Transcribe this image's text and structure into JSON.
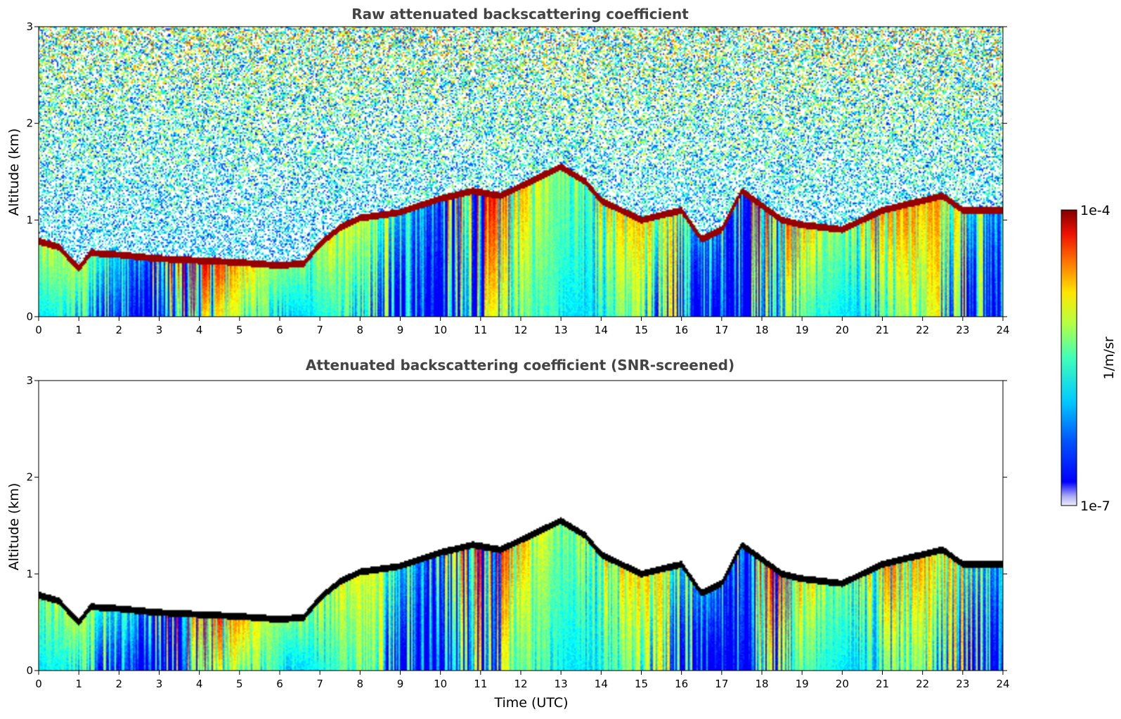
{
  "chart_data": [
    {
      "type": "heatmap",
      "title": "Raw attenuated backscattering coefficient",
      "xlabel": "",
      "ylabel": "Altitude (km)",
      "xlim": [
        0,
        24
      ],
      "ylim": [
        0,
        3
      ],
      "x_ticks": [
        0,
        1,
        2,
        3,
        4,
        5,
        6,
        7,
        8,
        9,
        10,
        11,
        12,
        13,
        14,
        15,
        16,
        17,
        18,
        19,
        20,
        21,
        22,
        23,
        24
      ],
      "y_ticks": [
        0,
        1,
        2,
        3
      ],
      "colormap": "jet",
      "color_scale": "log",
      "clim": [
        1e-07,
        0.0001
      ],
      "colorbar_label": "1/m/sr",
      "colorbar_ticks": [
        "1e-4",
        "1e-7"
      ],
      "screened": false,
      "layer_top_km": [
        [
          0,
          0.78
        ],
        [
          0.5,
          0.72
        ],
        [
          1,
          0.5
        ],
        [
          1.3,
          0.66
        ],
        [
          2,
          0.64
        ],
        [
          3,
          0.6
        ],
        [
          4,
          0.58
        ],
        [
          5,
          0.56
        ],
        [
          6,
          0.53
        ],
        [
          6.6,
          0.55
        ],
        [
          7,
          0.75
        ],
        [
          7.5,
          0.92
        ],
        [
          8,
          1.02
        ],
        [
          9,
          1.08
        ],
        [
          10,
          1.22
        ],
        [
          10.8,
          1.3
        ],
        [
          11.5,
          1.25
        ],
        [
          12,
          1.35
        ],
        [
          13,
          1.55
        ],
        [
          13.6,
          1.4
        ],
        [
          14,
          1.2
        ],
        [
          14.5,
          1.1
        ],
        [
          15,
          1.0
        ],
        [
          15.5,
          1.05
        ],
        [
          16,
          1.1
        ],
        [
          16.5,
          0.8
        ],
        [
          17,
          0.9
        ],
        [
          17.5,
          1.3
        ],
        [
          18,
          1.15
        ],
        [
          18.5,
          1.0
        ],
        [
          19,
          0.95
        ],
        [
          20,
          0.9
        ],
        [
          21,
          1.1
        ],
        [
          22,
          1.2
        ],
        [
          22.5,
          1.25
        ],
        [
          23,
          1.1
        ],
        [
          24,
          1.1
        ]
      ]
    },
    {
      "type": "heatmap",
      "title": "Attenuated backscattering coefficient (SNR-screened)",
      "xlabel": "Time (UTC)",
      "ylabel": "Altitude (km)",
      "xlim": [
        0,
        24
      ],
      "ylim": [
        0,
        3
      ],
      "x_ticks": [
        0,
        1,
        2,
        3,
        4,
        5,
        6,
        7,
        8,
        9,
        10,
        11,
        12,
        13,
        14,
        15,
        16,
        17,
        18,
        19,
        20,
        21,
        22,
        23,
        24
      ],
      "y_ticks": [
        0,
        1,
        2,
        3
      ],
      "colormap": "jet",
      "color_scale": "log",
      "clim": [
        1e-07,
        0.0001
      ],
      "colorbar_label": "1/m/sr",
      "colorbar_ticks": [
        "1e-4",
        "1e-7"
      ],
      "screened": true,
      "layer_top_km": [
        [
          0,
          0.78
        ],
        [
          0.5,
          0.72
        ],
        [
          1,
          0.5
        ],
        [
          1.3,
          0.66
        ],
        [
          2,
          0.64
        ],
        [
          3,
          0.6
        ],
        [
          4,
          0.58
        ],
        [
          5,
          0.56
        ],
        [
          6,
          0.53
        ],
        [
          6.6,
          0.55
        ],
        [
          7,
          0.75
        ],
        [
          7.5,
          0.92
        ],
        [
          8,
          1.02
        ],
        [
          9,
          1.08
        ],
        [
          10,
          1.22
        ],
        [
          10.8,
          1.3
        ],
        [
          11.5,
          1.25
        ],
        [
          12,
          1.35
        ],
        [
          13,
          1.55
        ],
        [
          13.6,
          1.4
        ],
        [
          14,
          1.2
        ],
        [
          14.5,
          1.1
        ],
        [
          15,
          1.0
        ],
        [
          15.5,
          1.05
        ],
        [
          16,
          1.1
        ],
        [
          16.5,
          0.8
        ],
        [
          17,
          0.9
        ],
        [
          17.5,
          1.3
        ],
        [
          18,
          1.15
        ],
        [
          18.5,
          1.0
        ],
        [
          19,
          0.95
        ],
        [
          20,
          0.9
        ],
        [
          21,
          1.1
        ],
        [
          22,
          1.2
        ],
        [
          22.5,
          1.25
        ],
        [
          23,
          1.1
        ],
        [
          24,
          1.1
        ]
      ]
    }
  ],
  "colorbar": {
    "label": "1/m/sr",
    "max_label": "1e-4",
    "min_label": "1e-7"
  }
}
